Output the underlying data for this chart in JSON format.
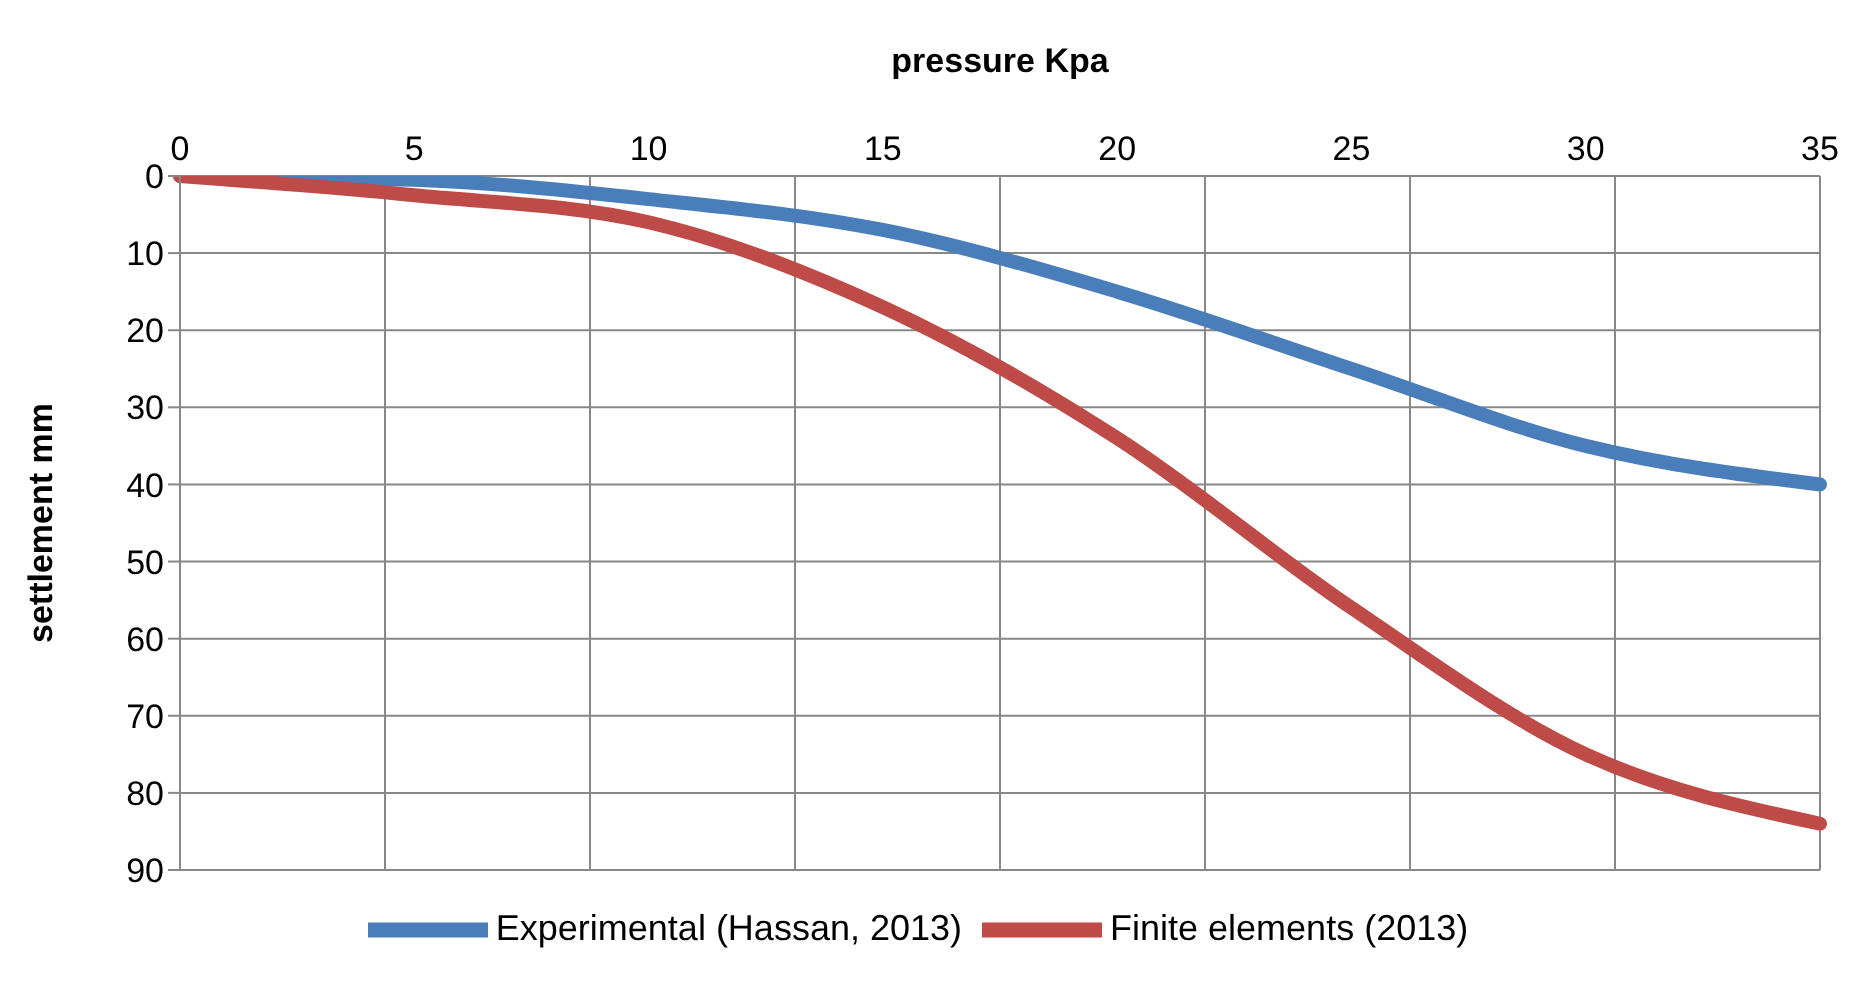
{
  "chart_data": {
    "type": "line",
    "xlabel": "pressure Kpa",
    "ylabel": "settlement mm",
    "categories": [
      "0",
      "5",
      "10",
      "15",
      "20",
      "25",
      "30",
      "35"
    ],
    "series": [
      {
        "name": "Experimental (Hassan, 2013)",
        "color": "#4a7ebb",
        "values": [
          0,
          0.5,
          3,
          7,
          15,
          25,
          35,
          40
        ]
      },
      {
        "name": "Finite elements (2013)",
        "color": "#be4b48",
        "values": [
          0,
          2.5,
          6,
          17,
          34,
          56,
          75,
          84
        ]
      }
    ],
    "ylim": [
      90,
      0
    ],
    "yticks": [
      0,
      10,
      20,
      30,
      40,
      50,
      60,
      70,
      80,
      90
    ],
    "grid": true,
    "legend": "bottom",
    "marker": "none",
    "line_style": "solid"
  }
}
